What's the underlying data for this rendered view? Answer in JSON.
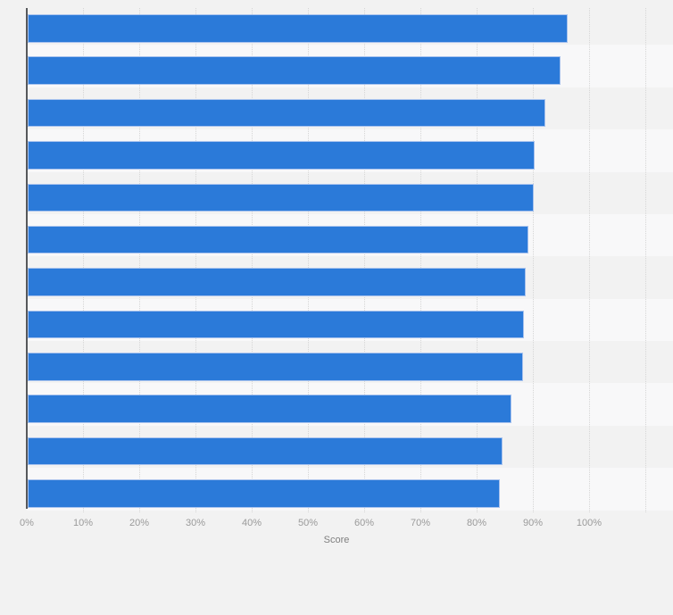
{
  "chart_data": {
    "type": "bar",
    "orientation": "horizontal",
    "title": "",
    "categories": [
      "",
      "",
      "",
      "",
      "",
      "",
      "",
      "",
      "",
      "",
      "",
      ""
    ],
    "values": [
      96.1,
      94.7,
      92.1,
      90.2,
      90.0,
      89.0,
      88.6,
      88.3,
      88.1,
      86.0,
      84.4,
      83.9
    ],
    "xlabel": "Score",
    "ylabel": "",
    "xlim": [
      0,
      114.8
    ],
    "xtick_interval": 10,
    "xtick_labels": [
      "0%",
      "10%",
      "20%",
      "30%",
      "40%",
      "50%",
      "60%",
      "70%",
      "80%",
      "90%",
      "100%"
    ],
    "unlabeled_gridline_at": 110,
    "grid": "vertical-dotted",
    "legend": "none",
    "colors": {
      "bar_fill": "#2b7ad9",
      "bar_border": "#a9c3ee",
      "background": "#f2f2f2",
      "alt_row_band": "#f8f8f9",
      "gridline": "#d6d6d6",
      "axis_line": "#56585b",
      "tick_label": "#9a9a9a",
      "axis_title": "#7f7f7f"
    }
  }
}
